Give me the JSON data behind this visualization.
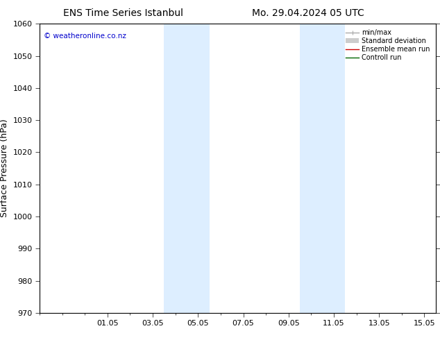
{
  "title_left": "ENS Time Series Istanbul",
  "title_right": "Mo. 29.04.2024 05 UTC",
  "ylabel": "Surface Pressure (hPa)",
  "ylim": [
    970,
    1060
  ],
  "yticks": [
    970,
    980,
    990,
    1000,
    1010,
    1020,
    1030,
    1040,
    1050,
    1060
  ],
  "xlim_start": -1.0,
  "xlim_end": 16.5,
  "xtick_positions": [
    2,
    4,
    6,
    8,
    10,
    12,
    14,
    16
  ],
  "xtick_labels": [
    "01.05",
    "03.05",
    "05.05",
    "07.05",
    "09.05",
    "11.05",
    "13.05",
    "15.05"
  ],
  "shaded_bands": [
    {
      "xstart": 4.5,
      "xend": 6.5
    },
    {
      "xstart": 10.5,
      "xend": 12.5
    }
  ],
  "shade_color": "#ddeeff",
  "copyright_text": "© weatheronline.co.nz",
  "legend_entries": [
    {
      "label": "min/max",
      "color": "#aaaaaa",
      "lw": 1.0
    },
    {
      "label": "Standard deviation",
      "color": "#cccccc",
      "lw": 6
    },
    {
      "label": "Ensemble mean run",
      "color": "#cc0000",
      "lw": 1.0
    },
    {
      "label": "Controll run",
      "color": "#006600",
      "lw": 1.0
    }
  ],
  "background_color": "#ffffff",
  "title_fontsize": 10,
  "axis_label_fontsize": 9,
  "tick_fontsize": 8,
  "copyright_color": "#0000cc"
}
